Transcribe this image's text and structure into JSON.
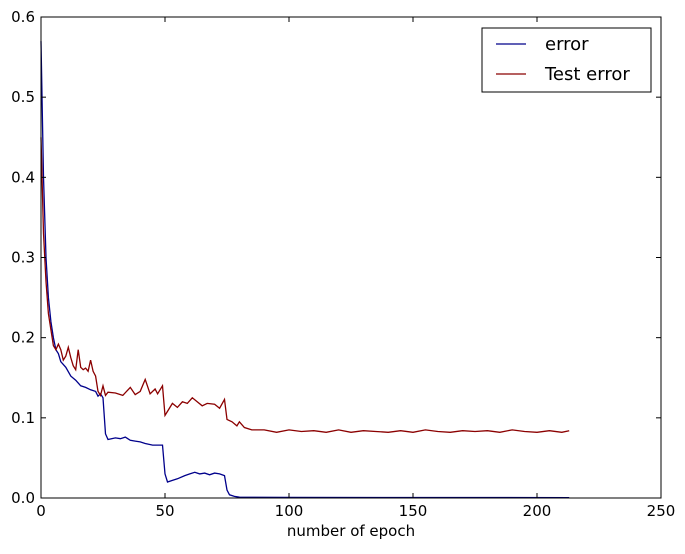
{
  "chart_data": {
    "type": "line",
    "xlabel": "number of epoch",
    "ylabel": "",
    "xlim": [
      0,
      250
    ],
    "ylim": [
      0,
      0.6
    ],
    "xticks": [
      0,
      50,
      100,
      150,
      200,
      250
    ],
    "yticks": [
      0.0,
      0.1,
      0.2,
      0.3,
      0.4,
      0.5,
      0.6
    ],
    "xtick_labels": [
      "0",
      "50",
      "100",
      "150",
      "200",
      "250"
    ],
    "ytick_labels": [
      "0.0",
      "0.1",
      "0.2",
      "0.3",
      "0.4",
      "0.5",
      "0.6"
    ],
    "grid": false,
    "legend_position": "top-right",
    "series": [
      {
        "name": "error",
        "color": "#00008b",
        "x": [
          0,
          1,
          2,
          3,
          4,
          5,
          6,
          7,
          8,
          10,
          12,
          14,
          16,
          18,
          20,
          22,
          23,
          24,
          25,
          26,
          27,
          30,
          32,
          34,
          36,
          38,
          40,
          42,
          45,
          49,
          50,
          51,
          53,
          55,
          58,
          60,
          62,
          64,
          66,
          68,
          70,
          72,
          74,
          75,
          76,
          78,
          80,
          100,
          150,
          213
        ],
        "y": [
          0.57,
          0.4,
          0.3,
          0.25,
          0.22,
          0.2,
          0.185,
          0.18,
          0.17,
          0.163,
          0.152,
          0.147,
          0.14,
          0.138,
          0.135,
          0.133,
          0.127,
          0.13,
          0.125,
          0.08,
          0.073,
          0.075,
          0.074,
          0.076,
          0.072,
          0.071,
          0.07,
          0.068,
          0.066,
          0.066,
          0.03,
          0.02,
          0.022,
          0.024,
          0.028,
          0.03,
          0.032,
          0.03,
          0.031,
          0.029,
          0.031,
          0.03,
          0.028,
          0.01,
          0.004,
          0.002,
          0.001,
          0.0008,
          0.0006,
          0.0005
        ]
      },
      {
        "name": "Test error",
        "color": "#8b0000",
        "x": [
          0,
          1,
          2,
          3,
          4,
          5,
          6,
          7,
          8,
          9,
          10,
          11,
          12,
          13,
          14,
          15,
          16,
          17,
          18,
          19,
          20,
          21,
          22,
          23,
          24,
          25,
          26,
          27,
          30,
          33,
          36,
          38,
          40,
          42,
          44,
          46,
          47,
          49,
          50,
          51,
          53,
          55,
          57,
          59,
          61,
          63,
          65,
          67,
          70,
          72,
          74,
          75,
          77,
          79,
          80,
          82,
          85,
          90,
          95,
          100,
          105,
          110,
          115,
          120,
          125,
          130,
          135,
          140,
          145,
          150,
          155,
          160,
          165,
          170,
          175,
          180,
          185,
          190,
          195,
          200,
          205,
          210,
          213
        ],
        "y": [
          0.45,
          0.33,
          0.27,
          0.23,
          0.21,
          0.19,
          0.185,
          0.192,
          0.185,
          0.172,
          0.177,
          0.188,
          0.175,
          0.165,
          0.16,
          0.185,
          0.163,
          0.16,
          0.162,
          0.158,
          0.172,
          0.158,
          0.152,
          0.133,
          0.128,
          0.14,
          0.128,
          0.132,
          0.131,
          0.128,
          0.138,
          0.129,
          0.133,
          0.148,
          0.13,
          0.136,
          0.13,
          0.14,
          0.103,
          0.108,
          0.118,
          0.113,
          0.12,
          0.118,
          0.125,
          0.12,
          0.115,
          0.118,
          0.117,
          0.112,
          0.123,
          0.098,
          0.095,
          0.09,
          0.095,
          0.088,
          0.085,
          0.085,
          0.082,
          0.085,
          0.083,
          0.084,
          0.082,
          0.085,
          0.082,
          0.084,
          0.083,
          0.082,
          0.084,
          0.082,
          0.085,
          0.083,
          0.082,
          0.084,
          0.083,
          0.084,
          0.082,
          0.085,
          0.083,
          0.082,
          0.084,
          0.082,
          0.084
        ]
      }
    ]
  }
}
